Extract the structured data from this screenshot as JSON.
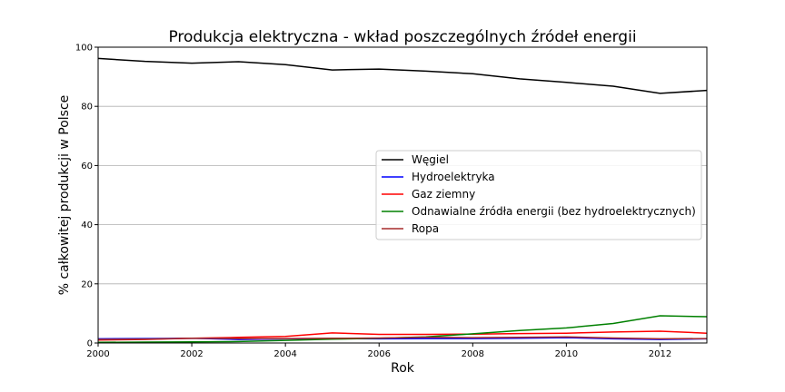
{
  "chart_data": {
    "type": "line",
    "title": "Produkcja elektryczna - wkład poszczególnych źródeł energii",
    "xlabel": "Rok",
    "ylabel": "% całkowitej produkcji w Polsce",
    "xlim": [
      2000,
      2013
    ],
    "ylim": [
      0,
      100
    ],
    "xticks": [
      "2000",
      "2002",
      "2004",
      "2006",
      "2008",
      "2010",
      "2012"
    ],
    "yticks": [
      "0",
      "20",
      "40",
      "60",
      "80",
      "100"
    ],
    "grid": "horizontal",
    "legend_position": "center-right",
    "x": [
      2000,
      2001,
      2002,
      2003,
      2004,
      2005,
      2006,
      2007,
      2008,
      2009,
      2010,
      2011,
      2012,
      2013
    ],
    "series": [
      {
        "name": "Węgiel",
        "color": "#000000",
        "values": [
          96.2,
          95.2,
          94.6,
          95.1,
          94.1,
          92.3,
          92.6,
          91.9,
          91.0,
          89.3,
          88.1,
          86.8,
          84.4,
          85.4
        ]
      },
      {
        "name": "Hydroelektryka",
        "color": "#0000ff",
        "values": [
          1.4,
          1.5,
          1.6,
          1.2,
          1.4,
          1.5,
          1.4,
          1.5,
          1.5,
          1.6,
          1.8,
          1.4,
          1.2,
          1.4
        ]
      },
      {
        "name": "Gaz ziemny",
        "color": "#ff0000",
        "values": [
          1.0,
          1.2,
          1.6,
          1.9,
          2.2,
          3.4,
          2.9,
          2.9,
          3.0,
          3.2,
          3.3,
          3.7,
          4.0,
          3.3
        ]
      },
      {
        "name": "Odnawialne źródła energii (bez hydroelektrycznych)",
        "color": "#008000",
        "values": [
          0.2,
          0.3,
          0.4,
          0.5,
          0.9,
          1.3,
          1.6,
          2.1,
          3.1,
          4.2,
          5.1,
          6.6,
          9.2,
          8.9
        ]
      },
      {
        "name": "Ropa",
        "color": "#a52a2a",
        "values": [
          1.2,
          1.3,
          1.6,
          1.5,
          1.5,
          1.6,
          1.7,
          1.9,
          1.8,
          1.9,
          2.1,
          1.7,
          1.4,
          1.5
        ]
      }
    ]
  }
}
